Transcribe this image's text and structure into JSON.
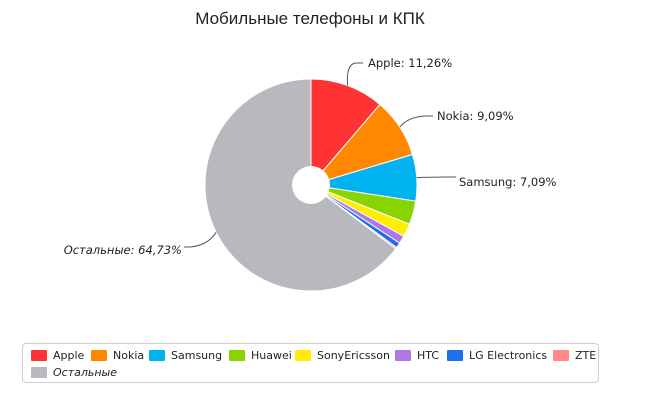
{
  "chart_data": {
    "type": "pie",
    "title": "Мобильные телефоны и КПК",
    "slices": [
      {
        "name": "Apple",
        "value": 11.26,
        "label": "Apple: 11,26%",
        "color": "#ff3333"
      },
      {
        "name": "Nokia",
        "value": 9.09,
        "label": "Nokia: 9,09%",
        "color": "#ff8800"
      },
      {
        "name": "Samsung",
        "value": 7.09,
        "label": "Samsung: 7,09%",
        "color": "#00b2f0"
      },
      {
        "name": "Huawei",
        "value": 3.6,
        "label": "",
        "color": "#88d400"
      },
      {
        "name": "SonyEricsson",
        "value": 2.0,
        "label": "",
        "color": "#ffee00"
      },
      {
        "name": "HTC",
        "value": 1.2,
        "label": "",
        "color": "#b077e8"
      },
      {
        "name": "LG Electronics",
        "value": 0.8,
        "label": "",
        "color": "#1f6fe8"
      },
      {
        "name": "ZTE",
        "value": 0.23,
        "label": "",
        "color": "#ff8888"
      },
      {
        "name": "Остальные",
        "value": 64.73,
        "label": "Остальные: 64,73%",
        "color": "#b8b8be"
      }
    ],
    "legend_position": "bottom",
    "donut_hole": true
  },
  "legend": {
    "items": [
      {
        "label": "Apple",
        "color": "#ff3333"
      },
      {
        "label": "Nokia",
        "color": "#ff8800"
      },
      {
        "label": "Samsung",
        "color": "#00b2f0"
      },
      {
        "label": "Huawei",
        "color": "#88d400"
      },
      {
        "label": "SonyEricsson",
        "color": "#ffee00"
      },
      {
        "label": "HTC",
        "color": "#b077e8"
      },
      {
        "label": "LG Electronics",
        "color": "#1f6fe8"
      },
      {
        "label": "ZTE",
        "color": "#ff8888"
      },
      {
        "label": "Остальные",
        "color": "#b8b8be"
      }
    ]
  }
}
